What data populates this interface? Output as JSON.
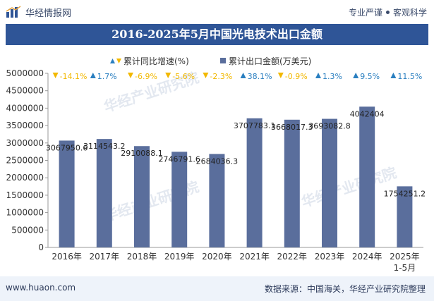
{
  "header": {
    "brand_name": "华经情报网",
    "slogan_left": "专业严谨",
    "slogan_right": "客观科学"
  },
  "watermark": "华经产业研究院",
  "footer": {
    "website": "www.huaon.com",
    "source": "数据来源：中国海关，华经产业研究院整理"
  },
  "colors": {
    "bar": "#5a6e9c",
    "title_bg": "#2f5597",
    "up": "#2a7fc0",
    "down": "#f2b800",
    "footer_bg": "#eef3fa"
  },
  "chart_data": {
    "type": "bar",
    "title": "2016-2025年5月中国光电技术出口金额",
    "categories": [
      "2016年",
      "2017年",
      "2018年",
      "2019年",
      "2020年",
      "2021年",
      "2022年",
      "2023年",
      "2024年",
      "2025年 1-5月"
    ],
    "category_lines": [
      [
        "2016年"
      ],
      [
        "2017年"
      ],
      [
        "2018年"
      ],
      [
        "2019年"
      ],
      [
        "2020年"
      ],
      [
        "2021年"
      ],
      [
        "2022年"
      ],
      [
        "2023年"
      ],
      [
        "2024年"
      ],
      [
        "2025年",
        "1-5月"
      ]
    ],
    "legend": {
      "growth": "累计同比增速(%)",
      "amount": "累计出口金额(万美元)"
    },
    "series": [
      {
        "name": "累计出口金额(万美元)",
        "values": [
          3067950.6,
          3114543.2,
          2910088.1,
          2746791.6,
          2684036.3,
          3707783.1,
          3668017.3,
          3693082.8,
          4042404,
          1754251.2
        ],
        "labels": [
          "3067950.6",
          "3114543.2",
          "2910088.1",
          "2746791.6",
          "2684036.3",
          "3707783.1",
          "3668017.3",
          "3693082.8",
          "4042404",
          "1754251.2"
        ]
      },
      {
        "name": "累计同比增速(%)",
        "values": [
          -14.1,
          1.7,
          -6.9,
          -5.6,
          -2.3,
          38.1,
          -0.9,
          1.3,
          9.5,
          11.5
        ],
        "labels": [
          "-14.1%",
          "1.7%",
          "-6.9%",
          "-5.6%",
          "-2.3%",
          "38.1%",
          "-0.9%",
          "1.3%",
          "9.5%",
          "11.5%"
        ]
      }
    ],
    "y_ticks": [
      "0",
      "500000",
      "1000000",
      "1500000",
      "2000000",
      "2500000",
      "3000000",
      "3500000",
      "4000000",
      "4500000",
      "5000000"
    ],
    "ylim": [
      0,
      5000000
    ],
    "legend_position": "top-center",
    "grid": false
  }
}
